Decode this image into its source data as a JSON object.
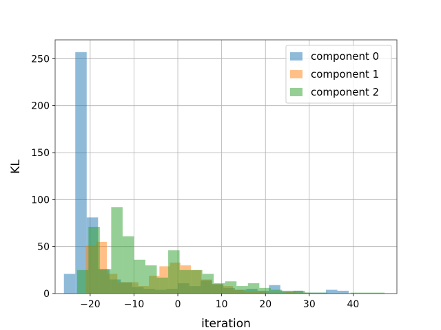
{
  "chart_data": {
    "type": "histogram",
    "title": "",
    "xlabel": "iteration",
    "ylabel": "KL",
    "xlim": [
      -28,
      50
    ],
    "ylim": [
      0,
      270
    ],
    "xticks": [
      -20,
      -10,
      0,
      10,
      20,
      30,
      40
    ],
    "xtick_labels": [
      "−20",
      "−10",
      "0",
      "10",
      "20",
      "30",
      "40"
    ],
    "yticks": [
      0,
      50,
      100,
      150,
      200,
      250
    ],
    "ytick_labels": [
      "0",
      "50",
      "100",
      "150",
      "200",
      "250"
    ],
    "grid": true,
    "legend_position": "top-right",
    "alpha": 0.5,
    "series": [
      {
        "name": "component 0",
        "color": "#1f77b4",
        "bin_edges": [
          -26,
          -23.4,
          -20.8,
          -18.2,
          -15.6,
          -13.0,
          -10.4,
          -7.8,
          -5.2,
          -2.6,
          0,
          2.6,
          5.2,
          7.8,
          10.4,
          13.0,
          15.6,
          18.2,
          20.8,
          23.4,
          26.0,
          28.6,
          31.2,
          33.8,
          36.4,
          39.0
        ],
        "counts": [
          21,
          257,
          81,
          26,
          15,
          12,
          7,
          5,
          4,
          5,
          11,
          8,
          14,
          10,
          6,
          4,
          5,
          3,
          9,
          3,
          3,
          1,
          1,
          4,
          3
        ]
      },
      {
        "name": "component 1",
        "color": "#ff7f0e",
        "bin_edges": [
          -21,
          -18.6,
          -16.2,
          -13.8,
          -11.4,
          -9.0,
          -6.6,
          -4.2,
          -1.8,
          0.6,
          3.0,
          5.4,
          7.8,
          10.2,
          12.6,
          15.0,
          17.4,
          19.8,
          22.2,
          24.6,
          27.0,
          29.4
        ],
        "counts": [
          51,
          55,
          21,
          12,
          12,
          8,
          19,
          29,
          33,
          30,
          25,
          15,
          10,
          8,
          4,
          2,
          2,
          1,
          1,
          2,
          1
        ]
      },
      {
        "name": "component 2",
        "color": "#2ca02c",
        "bin_edges": [
          -23,
          -20.4,
          -17.8,
          -15.2,
          -12.6,
          -10.0,
          -7.4,
          -4.8,
          -2.2,
          0.4,
          3.0,
          5.6,
          8.2,
          10.8,
          13.4,
          16.0,
          18.6,
          21.2,
          23.8,
          26.4,
          29.0,
          31.6,
          34.2,
          36.8,
          39.4,
          42.0,
          44.6,
          47.2
        ],
        "counts": [
          25,
          71,
          26,
          92,
          61,
          36,
          30,
          17,
          46,
          25,
          25,
          21,
          11,
          13,
          8,
          11,
          6,
          4,
          2,
          3,
          1,
          1,
          0,
          0,
          1,
          1,
          1
        ]
      }
    ]
  }
}
